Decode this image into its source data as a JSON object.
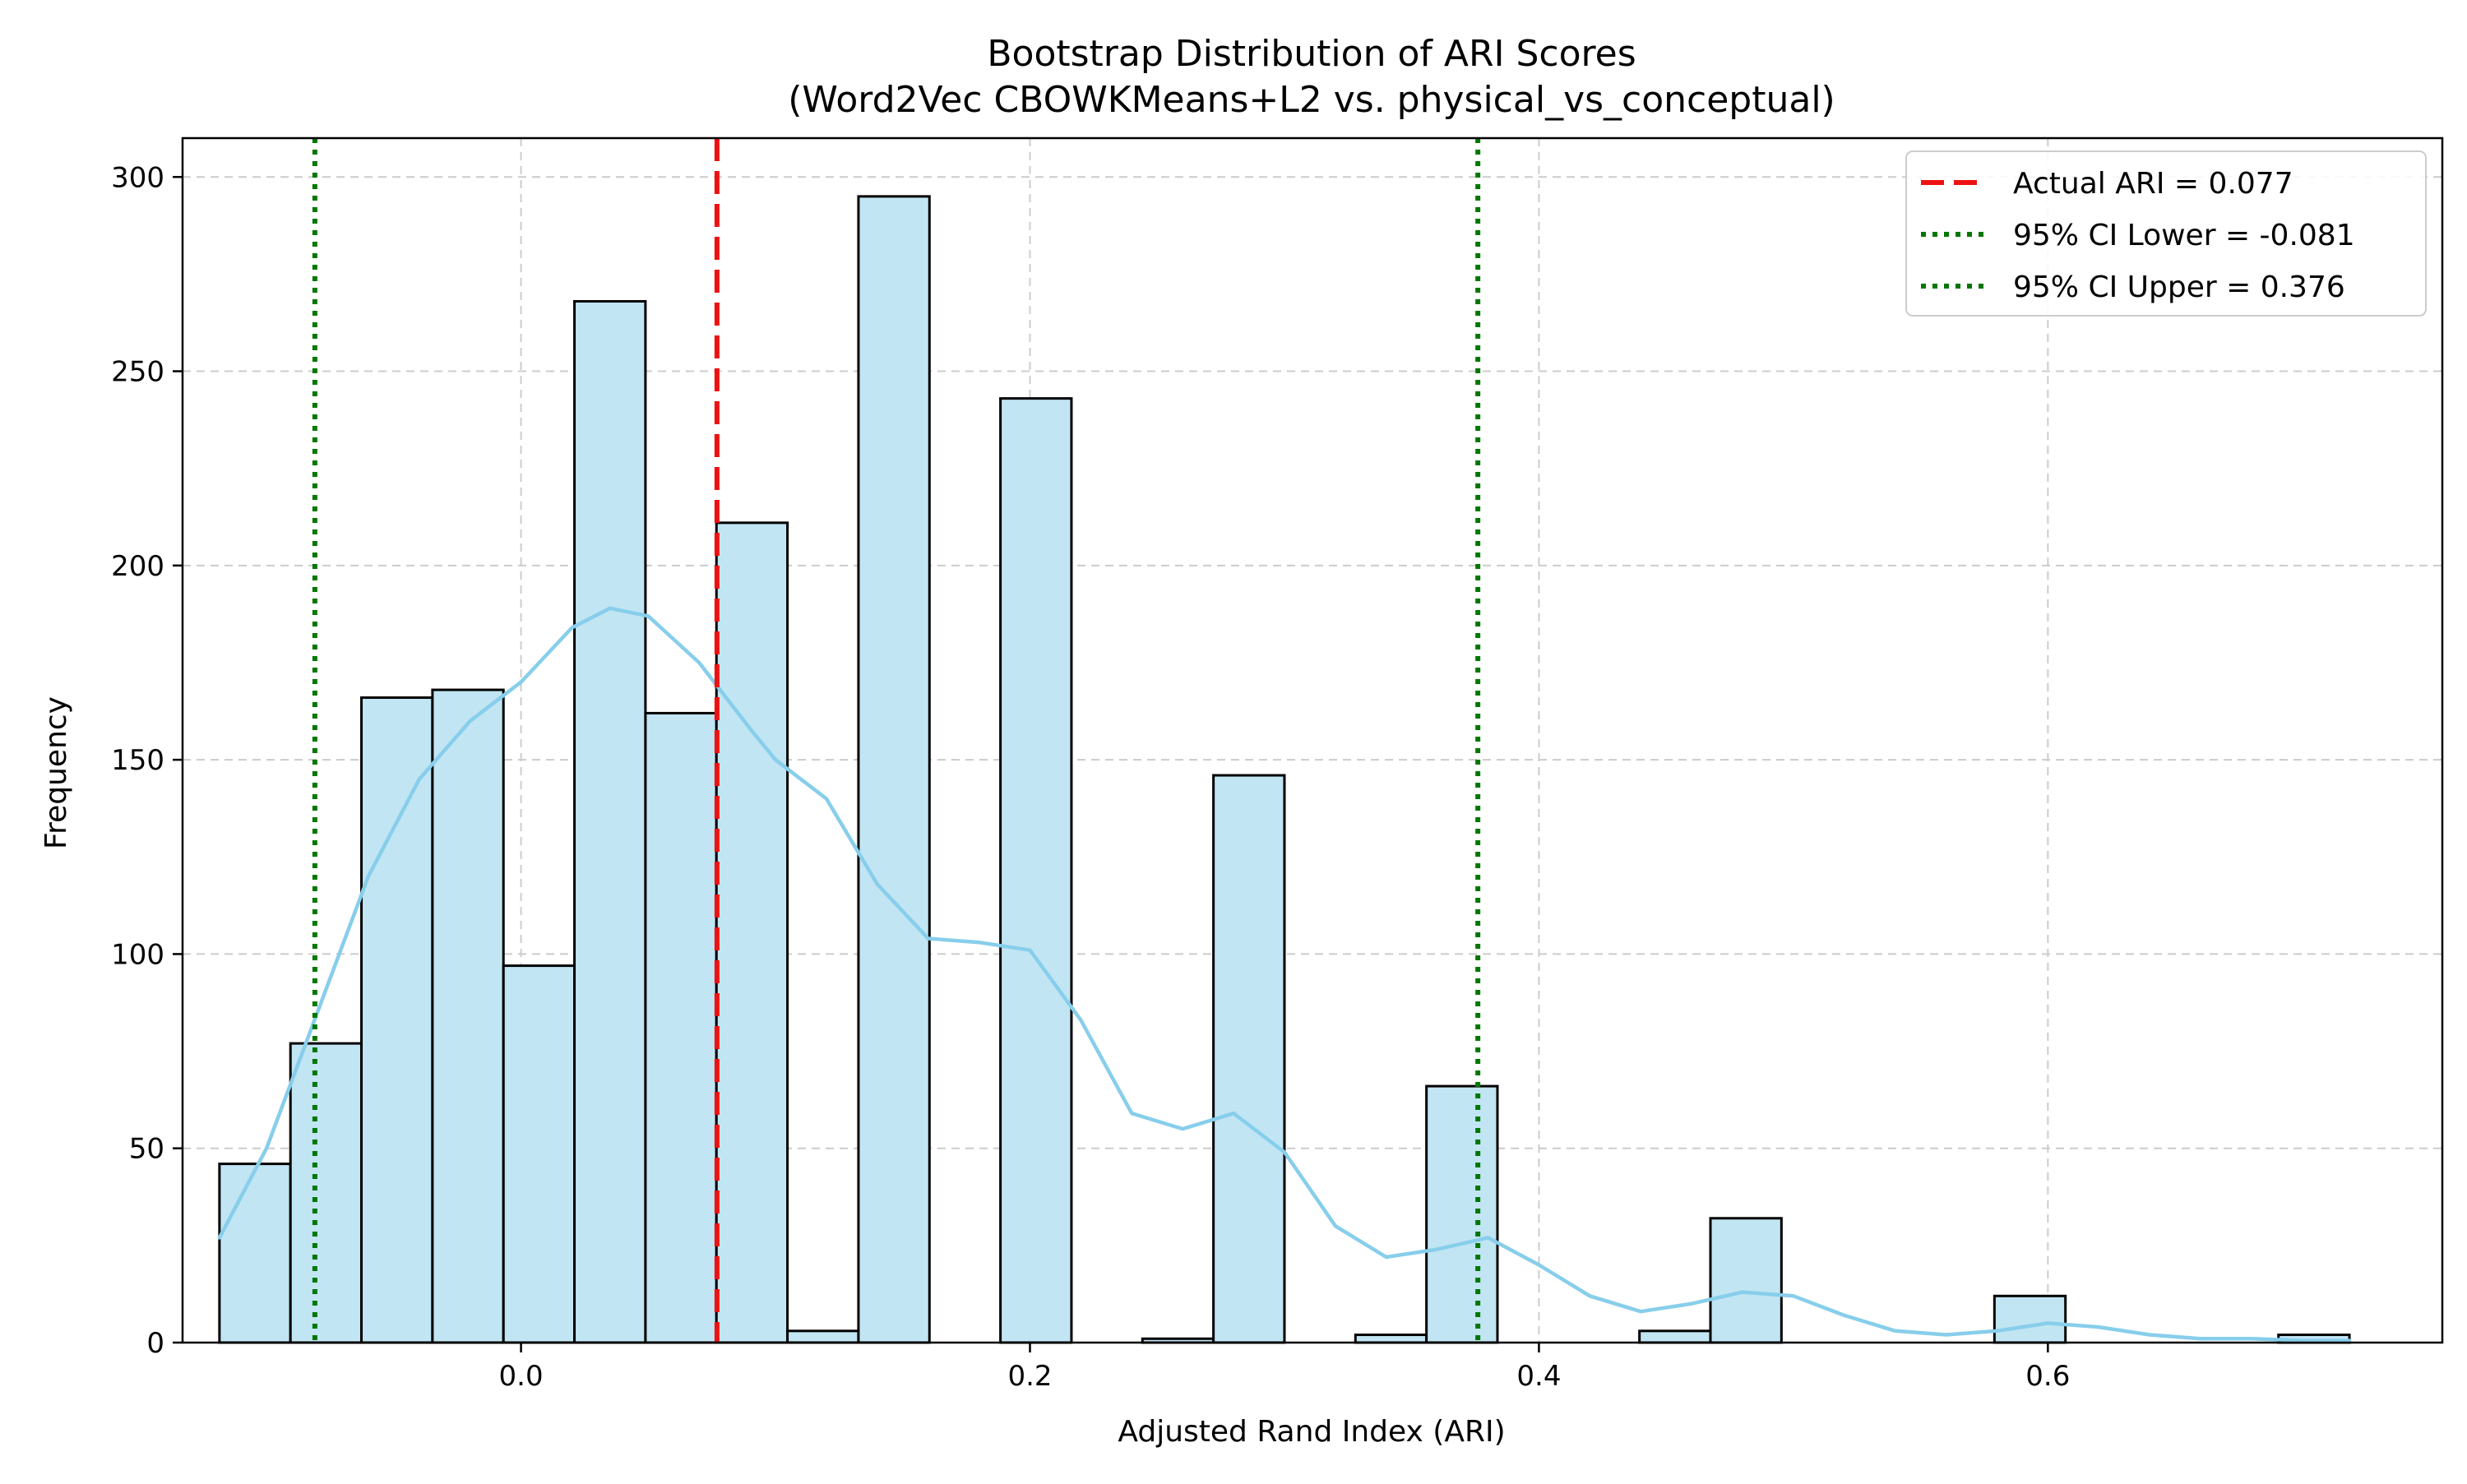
{
  "chart_data": {
    "type": "bar",
    "title": "Bootstrap Distribution of ARI Scores",
    "subtitle": "(Word2Vec CBOWKMeans+L2 vs. physical_vs_conceptual)",
    "xlabel": "Adjusted Rand Index (ARI)",
    "ylabel": "Frequency",
    "xlim": [
      -0.133,
      0.755
    ],
    "ylim": [
      0,
      310
    ],
    "xticks": [
      0.0,
      0.2,
      0.4,
      0.6
    ],
    "xtick_labels": [
      "0.0",
      "0.2",
      "0.4",
      "0.6"
    ],
    "yticks": [
      0,
      50,
      100,
      150,
      200,
      250,
      300
    ],
    "ytick_labels": [
      "0",
      "50",
      "100",
      "150",
      "200",
      "250",
      "300"
    ],
    "grid": true,
    "legend_position": "top-right",
    "bin_width": 0.0279,
    "bins": [
      {
        "x0": -0.1185,
        "x1": -0.0906,
        "value": 46
      },
      {
        "x0": -0.0906,
        "x1": -0.0627,
        "value": 77
      },
      {
        "x0": -0.0627,
        "x1": -0.0348,
        "value": 166
      },
      {
        "x0": -0.0348,
        "x1": -0.0069,
        "value": 168
      },
      {
        "x0": -0.0069,
        "x1": 0.021,
        "value": 97
      },
      {
        "x0": 0.021,
        "x1": 0.0489,
        "value": 268
      },
      {
        "x0": 0.0489,
        "x1": 0.0768,
        "value": 162
      },
      {
        "x0": 0.0768,
        "x1": 0.1047,
        "value": 211
      },
      {
        "x0": 0.1047,
        "x1": 0.1326,
        "value": 3
      },
      {
        "x0": 0.1326,
        "x1": 0.1605,
        "value": 295
      },
      {
        "x0": 0.1605,
        "x1": 0.1884,
        "value": 0
      },
      {
        "x0": 0.1884,
        "x1": 0.2163,
        "value": 243
      },
      {
        "x0": 0.2163,
        "x1": 0.2442,
        "value": 0
      },
      {
        "x0": 0.2442,
        "x1": 0.2721,
        "value": 1
      },
      {
        "x0": 0.2721,
        "x1": 0.3,
        "value": 146
      },
      {
        "x0": 0.3,
        "x1": 0.3279,
        "value": 0
      },
      {
        "x0": 0.3279,
        "x1": 0.3558,
        "value": 2
      },
      {
        "x0": 0.3558,
        "x1": 0.3837,
        "value": 66
      },
      {
        "x0": 0.3837,
        "x1": 0.4116,
        "value": 0
      },
      {
        "x0": 0.4116,
        "x1": 0.4395,
        "value": 0
      },
      {
        "x0": 0.4395,
        "x1": 0.4674,
        "value": 3
      },
      {
        "x0": 0.4674,
        "x1": 0.4953,
        "value": 32
      },
      {
        "x0": 0.4953,
        "x1": 0.5232,
        "value": 0
      },
      {
        "x0": 0.5232,
        "x1": 0.5511,
        "value": 0
      },
      {
        "x0": 0.5511,
        "x1": 0.579,
        "value": 0
      },
      {
        "x0": 0.579,
        "x1": 0.6069,
        "value": 12
      },
      {
        "x0": 0.6069,
        "x1": 0.6348,
        "value": 0
      },
      {
        "x0": 0.6348,
        "x1": 0.6627,
        "value": 0
      },
      {
        "x0": 0.6627,
        "x1": 0.6906,
        "value": 0
      },
      {
        "x0": 0.6906,
        "x1": 0.7185,
        "value": 2
      }
    ],
    "kde_curve": {
      "x": [
        -0.1185,
        -0.1,
        -0.08,
        -0.06,
        -0.04,
        -0.02,
        0.0,
        0.02,
        0.035,
        0.05,
        0.07,
        0.09,
        0.1,
        0.12,
        0.14,
        0.16,
        0.18,
        0.2,
        0.22,
        0.24,
        0.26,
        0.28,
        0.3,
        0.32,
        0.34,
        0.36,
        0.38,
        0.4,
        0.42,
        0.44,
        0.46,
        0.48,
        0.5,
        0.52,
        0.54,
        0.56,
        0.58,
        0.6,
        0.62,
        0.64,
        0.66,
        0.68,
        0.7,
        0.7185
      ],
      "y": [
        27,
        50,
        85,
        120,
        145,
        160,
        170,
        184,
        189,
        187,
        175,
        158,
        150,
        140,
        118,
        104,
        103,
        101,
        83,
        59,
        55,
        59,
        49,
        30,
        22,
        24,
        27,
        20,
        12,
        8,
        10,
        13,
        12,
        7,
        3,
        2,
        3,
        5,
        4,
        2,
        1,
        1,
        0.5,
        0.5
      ],
      "color": "#87ceeb"
    },
    "bar_fill_color": "#c1e5f3",
    "bar_edge_color": "#000000",
    "reference_lines": [
      {
        "name": "Actual ARI = 0.077",
        "x": 0.077,
        "style": "dashed",
        "color": "#ee1111"
      },
      {
        "name": "95% CI Lower = -0.081",
        "x": -0.081,
        "style": "dotted",
        "color": "#007700"
      },
      {
        "name": "95% CI Upper = 0.376",
        "x": 0.376,
        "style": "dotted",
        "color": "#007700"
      }
    ]
  }
}
